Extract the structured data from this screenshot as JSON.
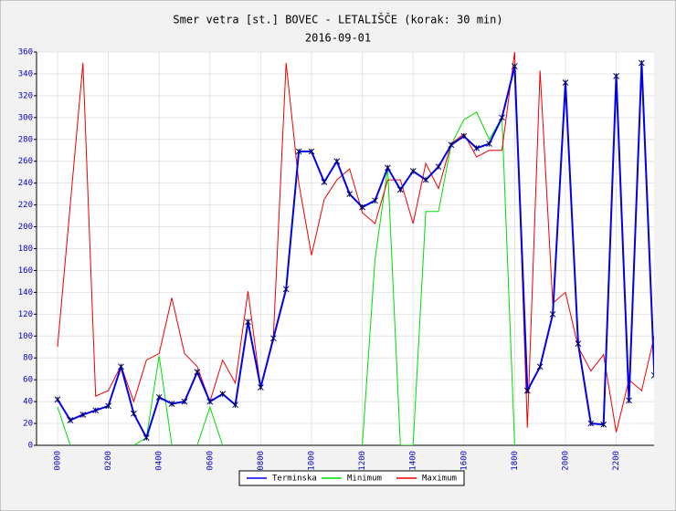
{
  "chart_data": {
    "type": "line",
    "title": "Smer vetra [st.] BOVEC - LETALIŠČE (korak: 30 min)",
    "subtitle": "2016-09-01",
    "categories": [
      "0000",
      null,
      null,
      null,
      "0200",
      null,
      null,
      null,
      "0400",
      null,
      null,
      null,
      "0600",
      null,
      null,
      null,
      "0800",
      null,
      null,
      null,
      "1000",
      null,
      null,
      null,
      "1200",
      null,
      null,
      null,
      "1400",
      null,
      null,
      null,
      "1600",
      null,
      null,
      null,
      "1800",
      null,
      null,
      null,
      "2000",
      null,
      null,
      null,
      "2200",
      null,
      null,
      null
    ],
    "series": [
      {
        "name": "Terminska",
        "color": "#0000ee",
        "values": [
          42,
          23,
          28,
          32,
          36,
          72,
          29,
          7,
          44,
          38,
          40,
          67,
          40,
          47,
          37,
          113,
          53,
          98,
          143,
          269,
          269,
          241,
          260,
          230,
          218,
          224,
          254,
          234,
          251,
          243,
          255,
          275,
          283,
          272,
          276,
          300,
          347,
          50,
          72,
          120,
          332,
          93,
          20,
          19,
          338,
          41,
          350,
          64
        ]
      },
      {
        "name": "Minimum",
        "color": "#00dd00",
        "values": [
          35,
          0,
          null,
          null,
          null,
          null,
          0,
          7,
          82,
          0,
          null,
          0,
          35,
          0,
          null,
          null,
          null,
          null,
          null,
          null,
          null,
          null,
          null,
          null,
          0,
          170,
          254,
          0,
          0,
          214,
          214,
          275,
          298,
          305,
          280,
          300,
          0,
          null,
          null,
          null,
          null,
          null,
          null,
          null,
          null,
          null,
          null,
          null
        ]
      },
      {
        "name": "Maximum",
        "color": "#ee0000",
        "values": [
          90,
          220,
          350,
          45,
          50,
          73,
          40,
          78,
          84,
          135,
          84,
          72,
          40,
          78,
          57,
          141,
          52,
          100,
          350,
          240,
          174,
          225,
          243,
          253,
          213,
          203,
          243,
          243,
          203,
          258,
          235,
          276,
          285,
          264,
          270,
          270,
          360,
          16,
          343,
          130,
          140,
          90,
          68,
          83,
          12,
          60,
          50,
          100
        ]
      }
    ],
    "ylim": [
      0,
      360
    ],
    "yticks": [
      0,
      20,
      40,
      60,
      80,
      100,
      120,
      140,
      160,
      180,
      200,
      220,
      240,
      260,
      280,
      300,
      320,
      340,
      360
    ],
    "grid": true
  }
}
